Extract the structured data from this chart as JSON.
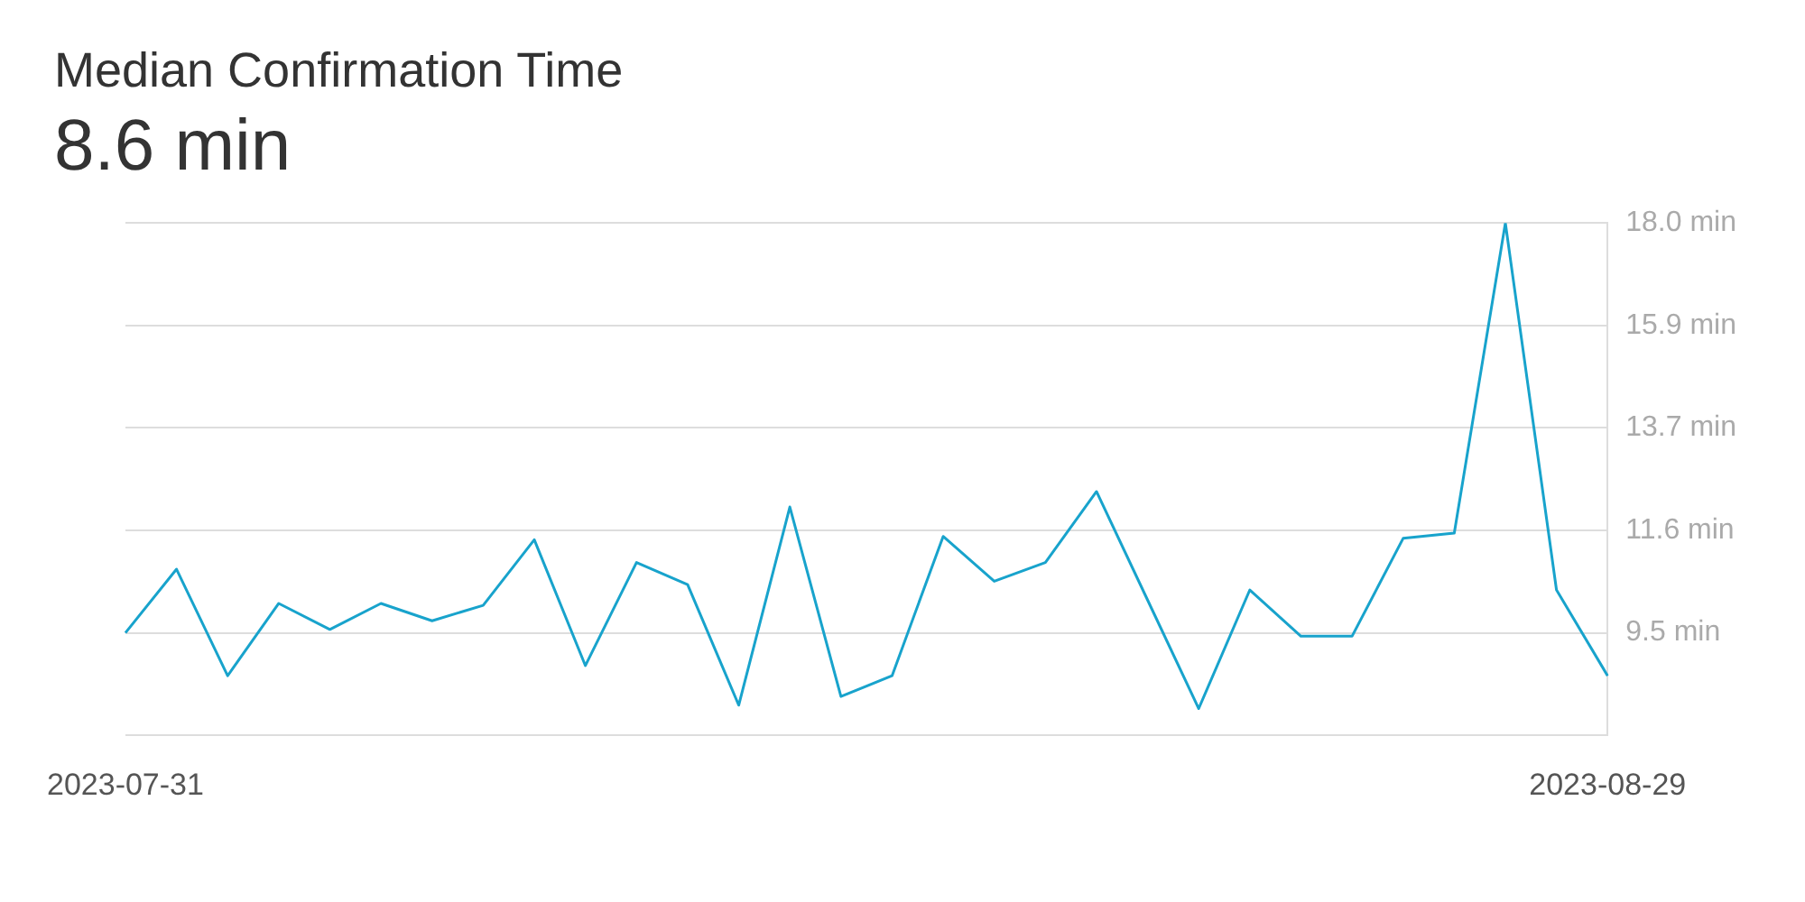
{
  "chart_data": {
    "type": "line",
    "title": "Median Confirmation Time",
    "subtitle": "8.6 min",
    "categories": [
      "2023-07-31",
      null,
      null,
      null,
      null,
      null,
      null,
      null,
      null,
      null,
      null,
      null,
      null,
      null,
      null,
      null,
      null,
      null,
      null,
      null,
      null,
      null,
      null,
      null,
      null,
      null,
      null,
      null,
      null,
      "2023-08-29"
    ],
    "series": [
      {
        "color": "#18a3cc",
        "values": [
          9.5,
          10.82,
          8.61,
          10.11,
          9.57,
          10.11,
          9.75,
          10.07,
          11.43,
          8.82,
          10.96,
          10.5,
          8.0,
          12.11,
          8.18,
          8.61,
          11.5,
          10.57,
          10.96,
          12.43,
          10.18,
          7.93,
          10.39,
          9.43,
          9.43,
          11.46,
          11.57,
          18.0,
          10.39,
          8.61
        ]
      }
    ],
    "ylim": [
      7.375,
      18.0
    ],
    "yticks": [
      {
        "value": 9.5,
        "label": "9.5 min"
      },
      {
        "value": 11.625,
        "label": "11.6 min"
      },
      {
        "value": 13.75,
        "label": "13.7 min"
      },
      {
        "value": 15.875,
        "label": "15.9 min"
      },
      {
        "value": 18.0,
        "label": "18.0 min"
      }
    ],
    "grid": "y",
    "legend": false,
    "marker": "none",
    "line_style": "solid"
  }
}
